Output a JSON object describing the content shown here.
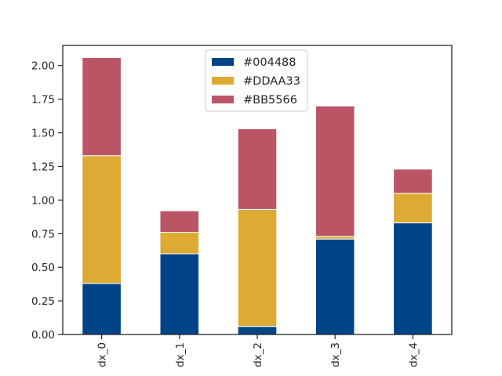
{
  "chart_data": {
    "type": "bar",
    "stacked": true,
    "title": "",
    "xlabel": "",
    "ylabel": "",
    "categories": [
      "dx_0",
      "dx_1",
      "dx_2",
      "dx_3",
      "dx_4"
    ],
    "series": [
      {
        "name": "#004488",
        "color": "#004488",
        "values": [
          0.38,
          0.6,
          0.06,
          0.71,
          0.83
        ]
      },
      {
        "name": "#DDAA33",
        "color": "#DDAA33",
        "values": [
          0.95,
          0.16,
          0.87,
          0.02,
          0.22
        ]
      },
      {
        "name": "#BB5566",
        "color": "#BB5566",
        "values": [
          0.73,
          0.16,
          0.6,
          0.97,
          0.18
        ]
      }
    ],
    "ylim": [
      0,
      2.15
    ],
    "yticks": [
      "0.00",
      "0.25",
      "0.50",
      "0.75",
      "1.00",
      "1.25",
      "1.50",
      "1.75",
      "2.00"
    ],
    "x_tick_rotation": "vertical",
    "grid": false,
    "legend": "upper-center"
  }
}
